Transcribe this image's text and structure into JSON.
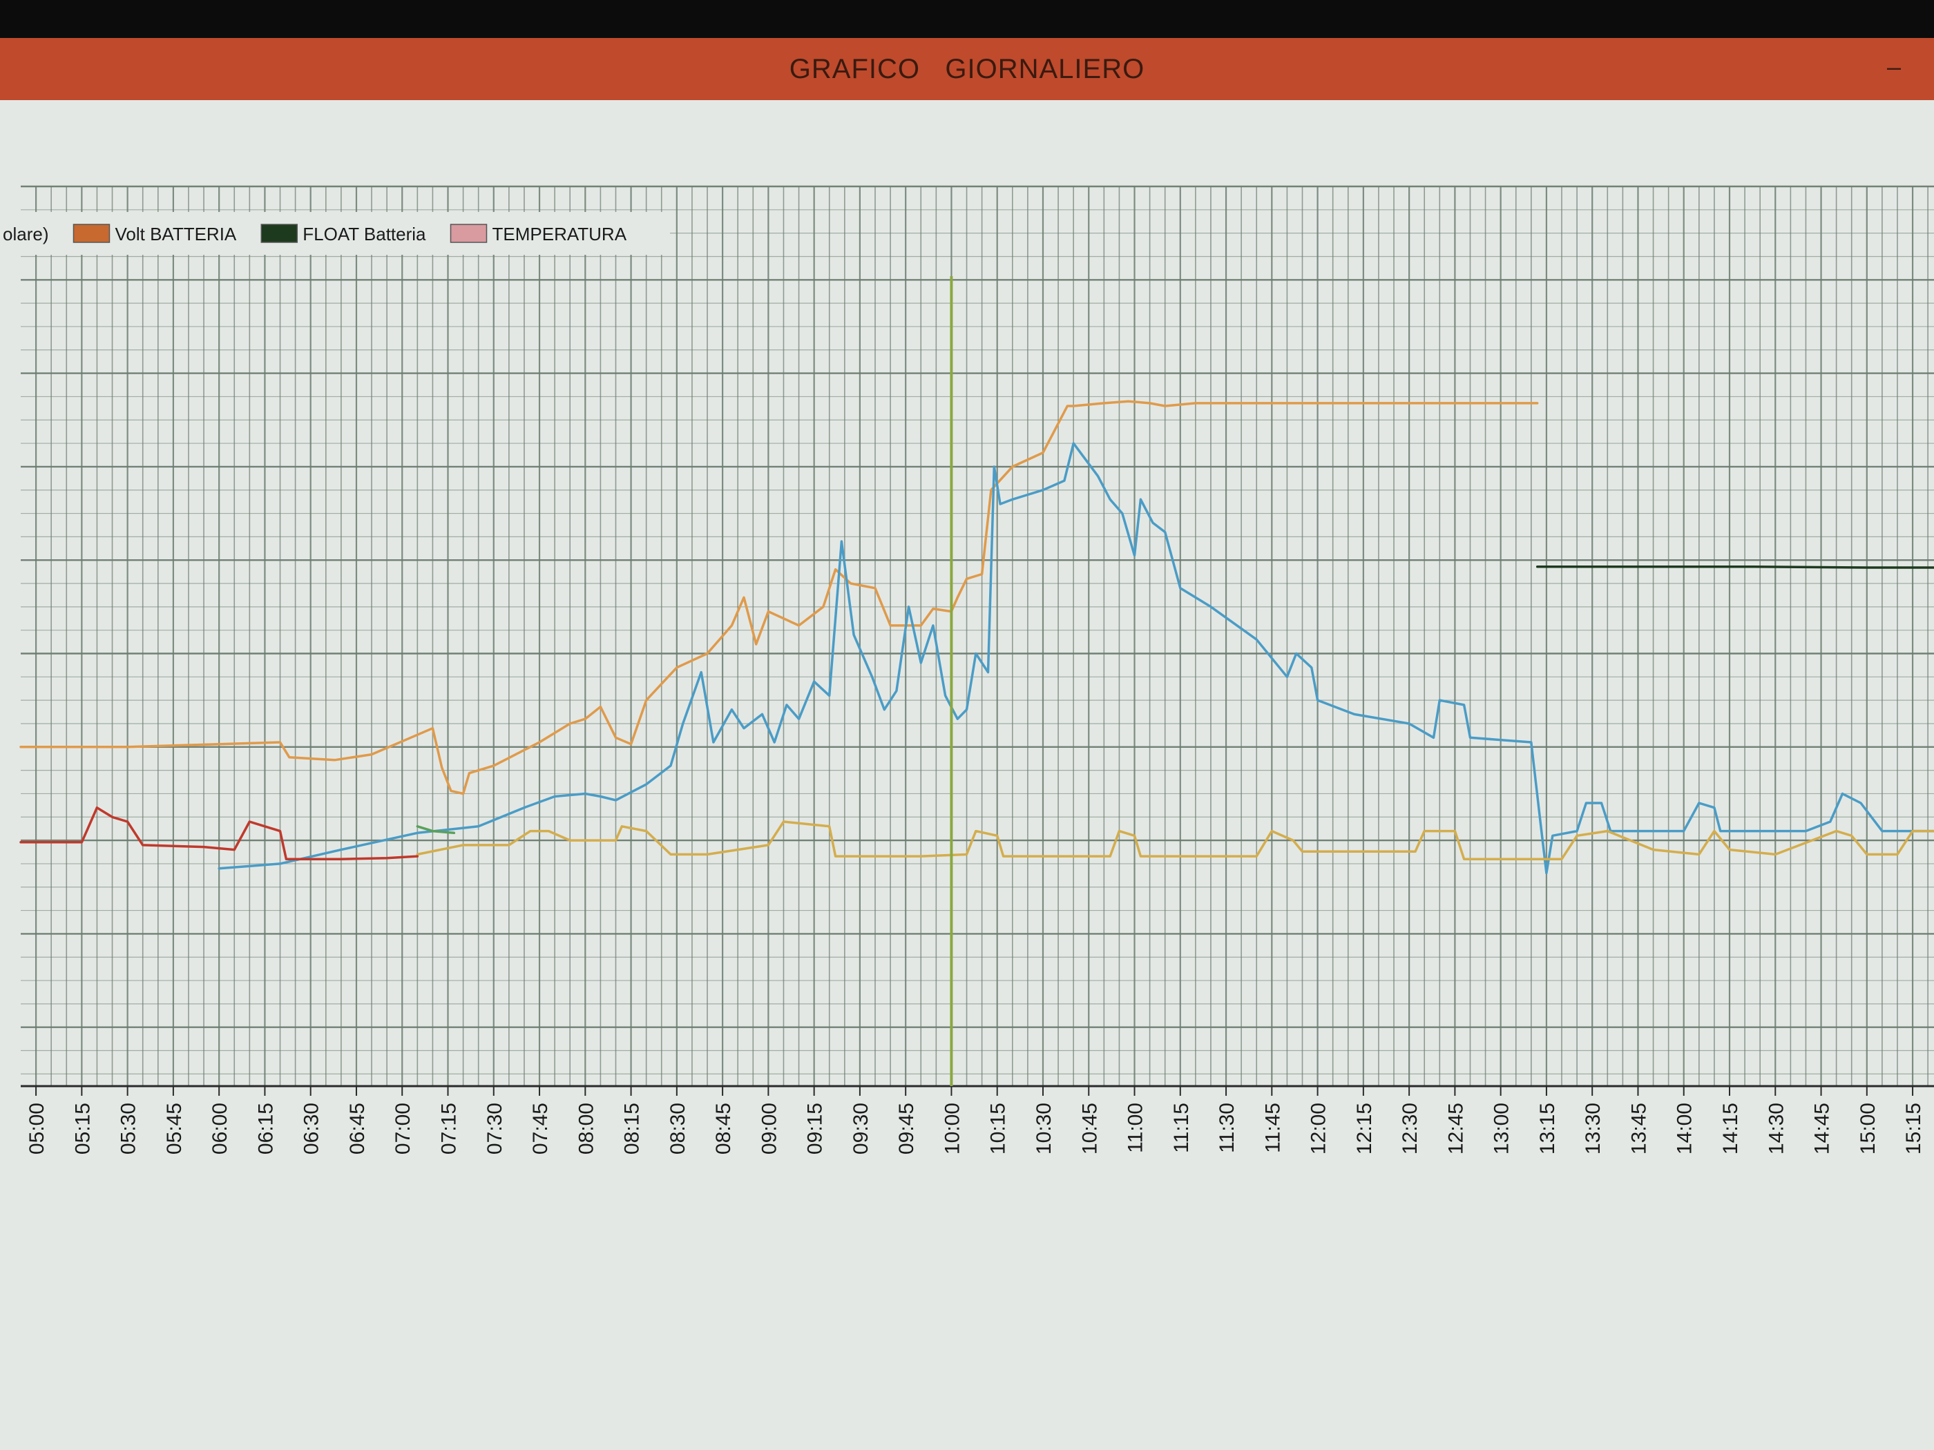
{
  "window": {
    "title": "GRAFICO   GIORNALIERO",
    "minimize_glyph": "–"
  },
  "colors": {
    "title_bar": "#bf4a2c",
    "plot_background": "#e3e8e5",
    "grid": "#6b7b6f"
  },
  "chart_data": {
    "type": "line",
    "title": "GRAFICO   GIORNALIERO",
    "xlabel": "",
    "ylabel": "",
    "x_ticks": [
      "05:00",
      "05:15",
      "05:30",
      "05:45",
      "06:00",
      "06:15",
      "06:30",
      "06:45",
      "07:00",
      "07:15",
      "07:30",
      "07:45",
      "08:00",
      "08:15",
      "08:30",
      "08:45",
      "09:00",
      "09:15",
      "09:30",
      "09:45",
      "10:00",
      "10:15",
      "10:30",
      "10:45",
      "11:00",
      "11:15",
      "11:30",
      "11:45",
      "12:00",
      "12:15",
      "12:30",
      "12:45",
      "13:00",
      "13:15",
      "13:30",
      "13:45",
      "14:00",
      "14:15",
      "14:30",
      "14:45",
      "15:00",
      "15:15"
    ],
    "xlim": [
      -5,
      622
    ],
    "ylim": [
      0,
      100
    ],
    "grid": true,
    "legend_position": "top-left",
    "legend": [
      {
        "label": "olare)",
        "color": null,
        "partial": true
      },
      {
        "label": "Volt BATTERIA",
        "color": "#c8692f"
      },
      {
        "label": "FLOAT Batteria",
        "color": "#1e3a1e"
      },
      {
        "label": "TEMPERATURA",
        "color": "#d99aa0"
      }
    ],
    "series": [
      {
        "name": "Volt BATTERIA",
        "color": "#e09a4a",
        "points": [
          [
            -5,
            40.0
          ],
          [
            30,
            40.0
          ],
          [
            60,
            40.3
          ],
          [
            80,
            40.5
          ],
          [
            83,
            38.9
          ],
          [
            98,
            38.6
          ],
          [
            110,
            39.2
          ],
          [
            125,
            41.3
          ],
          [
            130,
            42.0
          ],
          [
            133,
            37.8
          ],
          [
            136,
            35.3
          ],
          [
            140,
            35.0
          ],
          [
            142,
            37.2
          ],
          [
            150,
            38.0
          ],
          [
            165,
            40.5
          ],
          [
            175,
            42.5
          ],
          [
            180,
            43.0
          ],
          [
            185,
            44.3
          ],
          [
            190,
            41.0
          ],
          [
            195,
            40.3
          ],
          [
            200,
            45.0
          ],
          [
            210,
            48.5
          ],
          [
            220,
            50.0
          ],
          [
            228,
            53.0
          ],
          [
            232,
            56.0
          ],
          [
            236,
            51.0
          ],
          [
            240,
            54.5
          ],
          [
            250,
            53.0
          ],
          [
            258,
            55.0
          ],
          [
            262,
            59.0
          ],
          [
            267,
            57.5
          ],
          [
            275,
            57.0
          ],
          [
            280,
            53.0
          ],
          [
            290,
            53.0
          ],
          [
            294,
            54.8
          ],
          [
            300,
            54.5
          ],
          [
            302,
            56.0
          ],
          [
            305,
            58.0
          ],
          [
            310,
            58.5
          ],
          [
            313,
            67.5
          ],
          [
            320,
            70.0
          ],
          [
            330,
            71.5
          ],
          [
            338,
            76.5
          ],
          [
            340,
            76.5
          ],
          [
            350,
            76.8
          ],
          [
            358,
            77.0
          ],
          [
            365,
            76.8
          ],
          [
            370,
            76.5
          ],
          [
            380,
            76.8
          ],
          [
            400,
            76.8
          ],
          [
            450,
            76.8
          ],
          [
            480,
            76.8
          ],
          [
            492,
            76.8
          ]
        ]
      },
      {
        "name": "FLOAT Batteria",
        "color": "#1e3a1e",
        "points": [
          [
            492,
            59.3
          ],
          [
            520,
            59.3
          ],
          [
            560,
            59.3
          ],
          [
            600,
            59.2
          ],
          [
            622,
            59.2
          ]
        ]
      },
      {
        "name": "",
        "color": "#4a9cc6",
        "points": [
          [
            60,
            27.0
          ],
          [
            80,
            27.5
          ],
          [
            100,
            29.0
          ],
          [
            125,
            30.8
          ],
          [
            145,
            31.5
          ],
          [
            160,
            33.5
          ],
          [
            170,
            34.7
          ],
          [
            180,
            35.0
          ],
          [
            185,
            34.7
          ],
          [
            190,
            34.3
          ],
          [
            200,
            36.0
          ],
          [
            208,
            38.0
          ],
          [
            212,
            42.5
          ],
          [
            218,
            48.0
          ],
          [
            222,
            40.5
          ],
          [
            228,
            44.0
          ],
          [
            232,
            42.0
          ],
          [
            238,
            43.5
          ],
          [
            242,
            40.5
          ],
          [
            246,
            44.5
          ],
          [
            250,
            43.0
          ],
          [
            255,
            47.0
          ],
          [
            260,
            45.5
          ],
          [
            264,
            62.0
          ],
          [
            268,
            52.0
          ],
          [
            274,
            47.5
          ],
          [
            278,
            44.0
          ],
          [
            282,
            46.0
          ],
          [
            286,
            55.0
          ],
          [
            290,
            49.0
          ],
          [
            294,
            53.0
          ],
          [
            298,
            45.5
          ],
          [
            302,
            43.0
          ],
          [
            305,
            44.0
          ],
          [
            308,
            50.0
          ],
          [
            312,
            48.0
          ],
          [
            314,
            70.0
          ],
          [
            316,
            66.0
          ],
          [
            320,
            66.5
          ],
          [
            325,
            67.0
          ],
          [
            330,
            67.5
          ],
          [
            337,
            68.5
          ],
          [
            340,
            72.5
          ],
          [
            348,
            69.0
          ],
          [
            352,
            66.5
          ],
          [
            356,
            65.0
          ],
          [
            360,
            60.5
          ],
          [
            362,
            66.5
          ],
          [
            366,
            64.0
          ],
          [
            370,
            63.0
          ],
          [
            375,
            57.0
          ],
          [
            385,
            55.0
          ],
          [
            400,
            51.5
          ],
          [
            410,
            47.5
          ],
          [
            413,
            50.0
          ],
          [
            418,
            48.5
          ],
          [
            420,
            45.0
          ],
          [
            432,
            43.5
          ],
          [
            450,
            42.5
          ],
          [
            458,
            41.0
          ],
          [
            460,
            45.0
          ],
          [
            468,
            44.5
          ],
          [
            470,
            41.0
          ],
          [
            490,
            40.5
          ],
          [
            493,
            32.0
          ],
          [
            495,
            26.5
          ],
          [
            497,
            30.5
          ],
          [
            505,
            31.0
          ],
          [
            508,
            34.0
          ],
          [
            513,
            34.0
          ],
          [
            516,
            31.0
          ],
          [
            540,
            31.0
          ],
          [
            545,
            34.0
          ],
          [
            550,
            33.5
          ],
          [
            552,
            31.0
          ],
          [
            580,
            31.0
          ],
          [
            588,
            32.0
          ],
          [
            592,
            35.0
          ],
          [
            598,
            34.0
          ],
          [
            605,
            31.0
          ],
          [
            622,
            31.0
          ]
        ]
      },
      {
        "name": "",
        "color": "#d4ad4c",
        "points": [
          [
            125,
            28.5
          ],
          [
            140,
            29.5
          ],
          [
            155,
            29.5
          ],
          [
            162,
            31.0
          ],
          [
            168,
            31.0
          ],
          [
            175,
            30.0
          ],
          [
            190,
            30.0
          ],
          [
            192,
            31.5
          ],
          [
            200,
            31.0
          ],
          [
            208,
            28.5
          ],
          [
            220,
            28.5
          ],
          [
            230,
            29.0
          ],
          [
            240,
            29.5
          ],
          [
            245,
            32.0
          ],
          [
            260,
            31.5
          ],
          [
            262,
            28.3
          ],
          [
            290,
            28.3
          ],
          [
            305,
            28.5
          ],
          [
            308,
            31.0
          ],
          [
            315,
            30.5
          ],
          [
            317,
            28.3
          ],
          [
            340,
            28.3
          ],
          [
            352,
            28.3
          ],
          [
            355,
            31.0
          ],
          [
            360,
            30.5
          ],
          [
            362,
            28.3
          ],
          [
            400,
            28.3
          ],
          [
            405,
            31.0
          ],
          [
            412,
            30.0
          ],
          [
            415,
            28.8
          ],
          [
            435,
            28.8
          ],
          [
            452,
            28.8
          ],
          [
            455,
            31.0
          ],
          [
            465,
            31.0
          ],
          [
            468,
            28.0
          ],
          [
            500,
            28.0
          ],
          [
            505,
            30.5
          ],
          [
            515,
            31.0
          ],
          [
            530,
            29.0
          ],
          [
            545,
            28.5
          ],
          [
            550,
            31.0
          ],
          [
            555,
            29.0
          ],
          [
            570,
            28.5
          ],
          [
            590,
            31.0
          ],
          [
            595,
            30.5
          ],
          [
            600,
            28.5
          ],
          [
            610,
            28.5
          ],
          [
            615,
            31.0
          ],
          [
            622,
            31.0
          ]
        ]
      },
      {
        "name": "",
        "color": "#c0392b",
        "points": [
          [
            -5,
            29.8
          ],
          [
            15,
            29.8
          ],
          [
            20,
            33.5
          ],
          [
            25,
            32.5
          ],
          [
            30,
            32.0
          ],
          [
            35,
            29.5
          ],
          [
            55,
            29.3
          ],
          [
            65,
            29.0
          ],
          [
            70,
            32.0
          ],
          [
            75,
            31.5
          ],
          [
            80,
            31.0
          ],
          [
            82,
            28.0
          ],
          [
            100,
            28.0
          ],
          [
            115,
            28.1
          ],
          [
            125,
            28.3
          ]
        ]
      },
      {
        "name": "",
        "color": "#5aa05a",
        "points": [
          [
            125,
            31.5
          ],
          [
            130,
            31.0
          ],
          [
            137,
            30.8
          ]
        ]
      }
    ],
    "annotations": [
      {
        "type": "vertical_line",
        "x": 300,
        "color": "#8aa83f"
      }
    ]
  }
}
